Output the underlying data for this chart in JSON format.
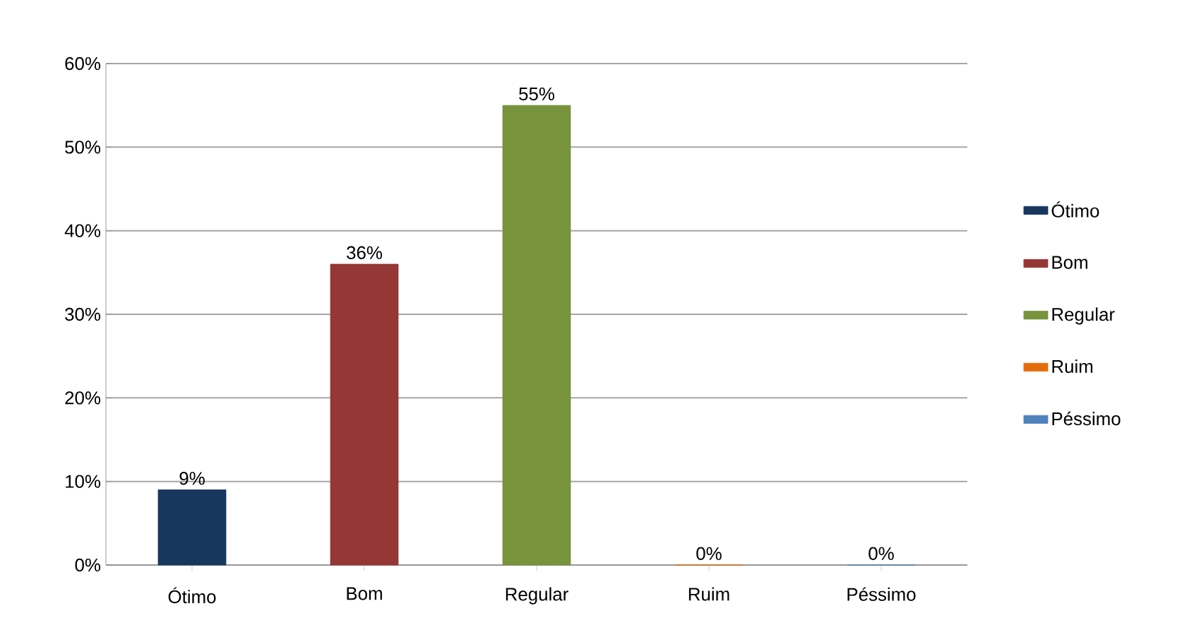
{
  "chart_data": {
    "type": "bar",
    "categories": [
      "Ótimo",
      "Bom",
      "Regular",
      "Ruim",
      "Péssimo"
    ],
    "series": [
      {
        "name": "Ótimo",
        "color": "#17375e",
        "values": [
          9,
          null,
          null,
          null,
          null
        ],
        "value_labels": [
          "9%",
          null,
          null,
          null,
          null
        ]
      },
      {
        "name": "Bom",
        "color": "#953735",
        "values": [
          null,
          36,
          null,
          null,
          null
        ],
        "value_labels": [
          null,
          "36%",
          null,
          null,
          null
        ]
      },
      {
        "name": "Regular",
        "color": "#77933c",
        "values": [
          null,
          null,
          55,
          null,
          null
        ],
        "value_labels": [
          null,
          null,
          "55%",
          null,
          null
        ]
      },
      {
        "name": "Ruim",
        "color": "#e46c0a",
        "values": [
          null,
          null,
          null,
          0,
          null
        ],
        "value_labels": [
          null,
          null,
          null,
          "0%",
          null
        ]
      },
      {
        "name": "Péssimo",
        "color": "#4f81bd",
        "values": [
          null,
          null,
          null,
          null,
          0
        ],
        "value_labels": [
          null,
          null,
          null,
          null,
          "0%"
        ]
      }
    ],
    "ylim": [
      0,
      60
    ],
    "yticks": [
      {
        "value": 0,
        "label": "0%"
      },
      {
        "value": 10,
        "label": "10%"
      },
      {
        "value": 20,
        "label": "20%"
      },
      {
        "value": 30,
        "label": "30%"
      },
      {
        "value": 40,
        "label": "40%"
      },
      {
        "value": 50,
        "label": "50%"
      },
      {
        "value": 60,
        "label": "60%"
      }
    ],
    "grid": "y",
    "legend": "right"
  }
}
